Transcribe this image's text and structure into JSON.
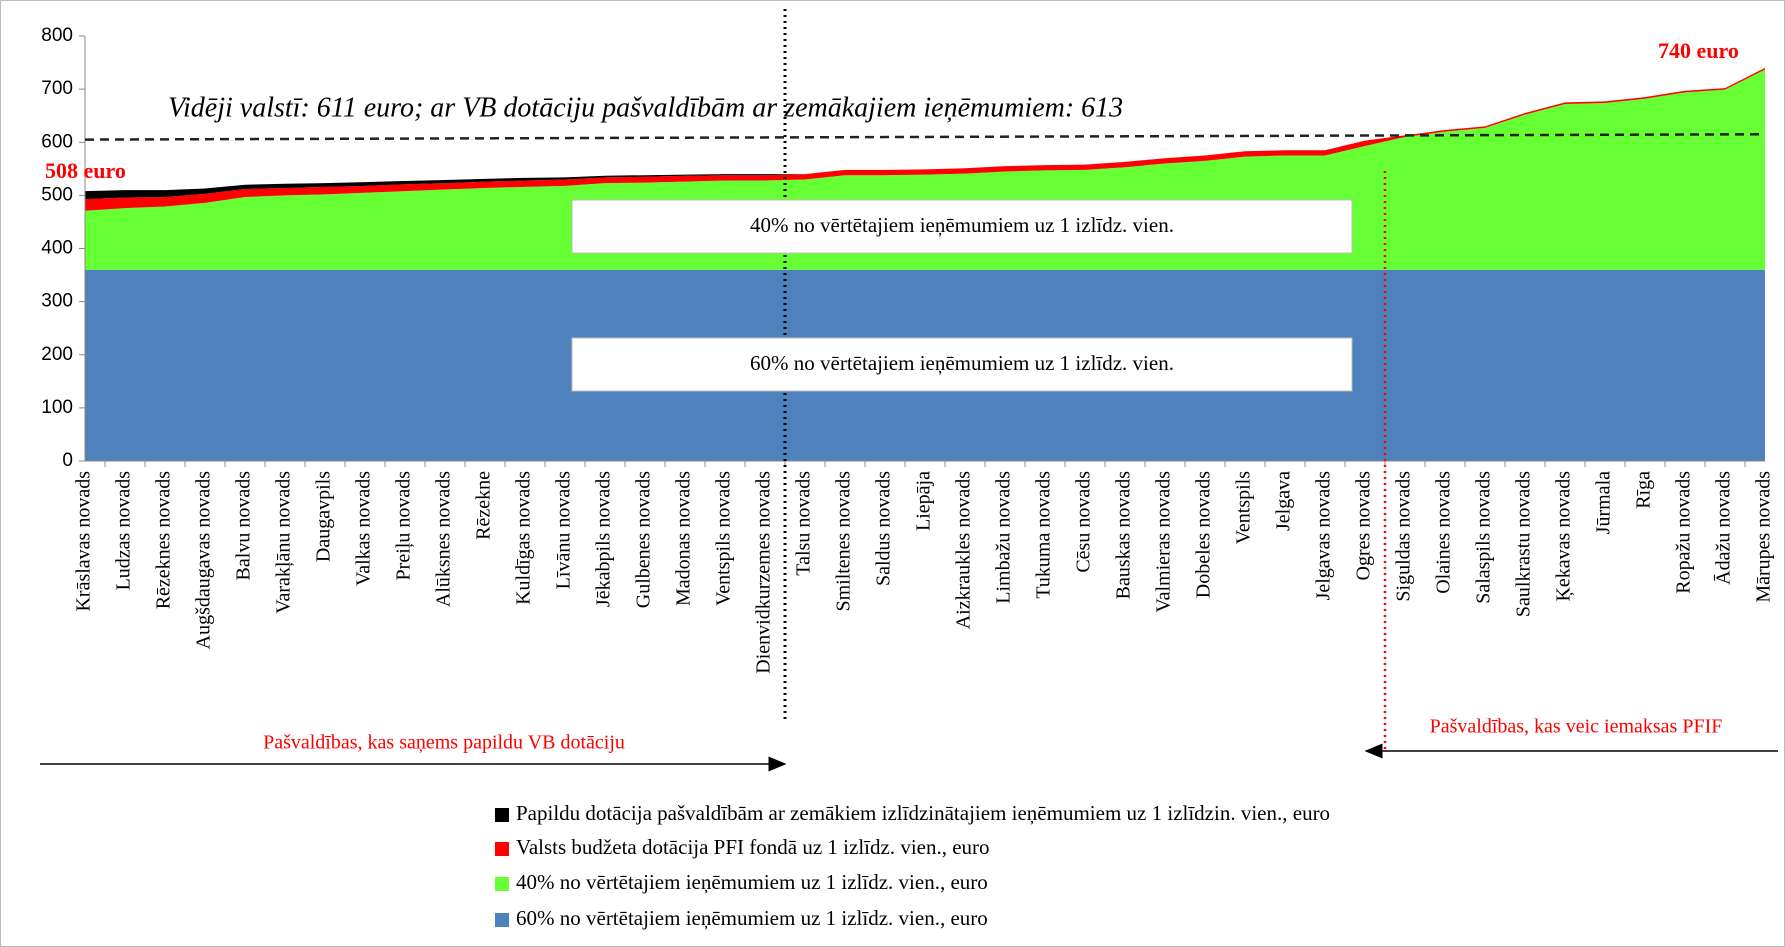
{
  "chart_data": {
    "type": "stacked_area",
    "title": "Vidēji valstī: 611 euro; ar VB dotāciju pašvaldībām ar zemākajiem ieņēmumiem: 613",
    "categories": [
      "Krāslavas novads",
      "Ludzas novads",
      "Rēzeknes novads",
      "Augšdaugavas novads",
      "Balvu novads",
      "Varakļānu novads",
      "Daugavpils",
      "Valkas novads",
      "Preiļu novads",
      "Alūksnes novads",
      "Rēzekne",
      "Kuldīgas novads",
      "Līvānu novads",
      "Jēkabpils novads",
      "Gulbenes novads",
      "Madonas novads",
      "Ventspils novads",
      "Dienvidkurzemes novads",
      "Talsu novads",
      "Smiltenes novads",
      "Saldus novads",
      "Liepāja",
      "Aizkraukles novads",
      "Limbažu novads",
      "Tukuma novads",
      "Cēsu novads",
      "Bauskas novads",
      "Valmieras novads",
      "Dobeles novads",
      "Ventspils",
      "Jelgava",
      "Jelgavas novads",
      "Ogres novads",
      "Siguldas novads",
      "Olaines novads",
      "Salaspils novads",
      "Saulkrastu novads",
      "Ķekavas novads",
      "Jūrmala",
      "Rīga",
      "Ropažu novads",
      "Ādažu novads",
      "Mārupes novads"
    ],
    "series": [
      {
        "name": "60% no vērtētajiem ieņēmumiem uz 1 izlīdz. vien., euro",
        "color": "#4f81bd",
        "values": [
          360,
          360,
          360,
          360,
          360,
          360,
          360,
          360,
          360,
          360,
          360,
          360,
          360,
          360,
          360,
          360,
          360,
          360,
          360,
          360,
          360,
          360,
          360,
          360,
          360,
          360,
          360,
          360,
          360,
          360,
          360,
          360,
          360,
          360,
          360,
          360,
          360,
          360,
          360,
          360,
          360,
          360,
          360
        ]
      },
      {
        "name": "40% no vērtētajiem ieņēmumiem uz 1 izlīdz. vien., euro",
        "color": "#66ff33",
        "values": [
          111,
          116,
          119,
          126,
          137,
          140,
          142,
          145,
          148,
          151,
          154,
          156,
          158,
          163,
          164,
          166,
          168,
          168,
          170,
          178,
          178,
          179,
          181,
          185,
          187,
          188,
          193,
          200,
          205,
          213,
          215,
          215,
          233,
          250,
          260,
          267,
          292,
          312,
          314,
          322,
          334,
          339,
          377
        ]
      },
      {
        "name": "Valsts budžeta dotācija PFI fondā uz 1 izlīdz. vien., euro",
        "color": "#ff0000",
        "values": [
          22,
          20,
          18,
          17,
          15,
          14,
          14,
          13,
          13,
          12,
          12,
          12,
          12,
          11,
          11,
          11,
          10,
          10,
          10,
          10,
          10,
          10,
          10,
          10,
          10,
          10,
          10,
          10,
          10,
          10,
          10,
          10,
          10,
          3,
          3,
          3,
          3,
          3,
          3,
          3,
          3,
          3,
          3
        ]
      },
      {
        "name": "Papildu dotācija pašvaldībām ar zemākiem izlīdzinātajiem ieņēmumiem uz 1 izlīdzin. vien., euro",
        "color": "#000000",
        "values": [
          15,
          14,
          13,
          10,
          8,
          8,
          7,
          7,
          6,
          6,
          5,
          5,
          4,
          3,
          3,
          2,
          2,
          2,
          0,
          0,
          0,
          0,
          0,
          0,
          0,
          0,
          0,
          0,
          0,
          0,
          0,
          0,
          0,
          0,
          0,
          0,
          0,
          0,
          0,
          0,
          0,
          0,
          0
        ]
      }
    ],
    "ylim": [
      0,
      800
    ],
    "yticks": [
      0,
      100,
      200,
      300,
      400,
      500,
      600,
      700,
      800
    ],
    "average_line": [
      605,
      615
    ],
    "annotations": [
      "508 euro",
      "740 euro",
      "40% no vērtētajiem ieņēmumiem uz 1 izlīdz. vien.",
      "60% no vērtētajiem ieņēmumiem uz 1 izlīdz. vien.",
      "Pašvaldības, kas saņems papildu VB  dotāciju",
      "Pašvaldības, kas veic iemaksas PFIF"
    ],
    "grid": false
  }
}
